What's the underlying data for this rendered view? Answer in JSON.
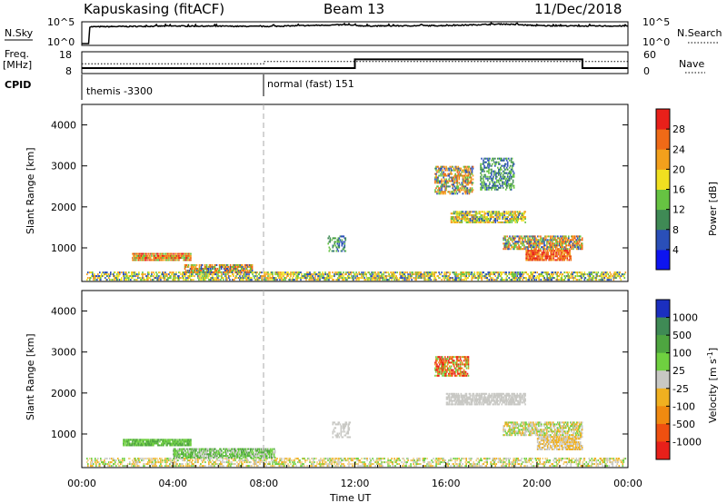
{
  "header": {
    "radar": "Kapuskasing (fitACF)",
    "beam": "Beam 13",
    "date": "11/Dec/2018"
  },
  "chart_data": [
    {
      "type": "line",
      "panel": "noise",
      "left_label": "N.Sky",
      "right_label": "N.Search",
      "left_ticks": [
        "10^5",
        "10^0"
      ],
      "right_ticks": [
        "10^5",
        "10^0"
      ],
      "series": [
        {
          "name": "N.Sky",
          "style": "solid",
          "x": [
            0,
            0.3,
            0.35,
            4,
            8,
            11.5,
            12.5,
            16,
            18.5,
            20,
            22,
            24
          ],
          "y": [
            0,
            0,
            4.2,
            4.4,
            4.3,
            4.7,
            4.4,
            4.5,
            4.9,
            4.5,
            4.4,
            4.4
          ]
        },
        {
          "name": "N.Search",
          "style": "dotted",
          "x": [],
          "y": []
        }
      ]
    },
    {
      "type": "line",
      "panel": "frequency",
      "left_label_1": "Freq.",
      "left_label_2": "[MHz]",
      "right_label": "Nave",
      "left_ticks": [
        "18",
        "8"
      ],
      "right_ticks": [
        "60",
        "0"
      ],
      "ylim": [
        8,
        18
      ],
      "series": [
        {
          "name": "Freq.",
          "style": "solid",
          "x": [
            0,
            8,
            8,
            12,
            12,
            22,
            22,
            24
          ],
          "y": [
            10.5,
            10.5,
            10.5,
            10.5,
            14.5,
            14.5,
            10.5,
            10.5
          ]
        },
        {
          "name": "Nave",
          "style": "dotted",
          "x": [
            0,
            8,
            8,
            24
          ],
          "y": [
            12.5,
            12.5,
            13.5,
            13.5
          ]
        }
      ]
    },
    {
      "type": "table",
      "panel": "cpid",
      "label": "CPID",
      "segments": [
        {
          "start": 0,
          "end": 8,
          "text": "themis -3300"
        },
        {
          "start": 8,
          "end": 24,
          "text": "normal (fast) 151"
        }
      ]
    },
    {
      "type": "heatmap",
      "panel": "power",
      "ylabel": "Slant Range [km]",
      "xlim": [
        0,
        24
      ],
      "ylim": [
        180,
        4500
      ],
      "y_ticks": [
        "1000",
        "2000",
        "3000",
        "4000"
      ],
      "colorbar": {
        "label": "Power [dB]",
        "tick_labels": [
          "4",
          "8",
          "12",
          "16",
          "20",
          "24",
          "28"
        ],
        "colors": [
          "#0d14f0",
          "#2a4fb8",
          "#3f8a55",
          "#66c342",
          "#f0e020",
          "#f3a01c",
          "#ef6a17",
          "#e8201a"
        ]
      },
      "regions": [
        {
          "t0": 0.2,
          "t1": 23.9,
          "r0": 200,
          "r1": 420,
          "c": [
            "#f0e020",
            "#2a4fb8",
            "#66c342",
            "#f3a01c"
          ],
          "d": 0.55
        },
        {
          "t0": 2.2,
          "t1": 4.8,
          "r0": 680,
          "r1": 880,
          "c": [
            "#ef6a17",
            "#f3a01c",
            "#e8201a",
            "#66c342"
          ],
          "d": 0.85
        },
        {
          "t0": 4.5,
          "t1": 7.5,
          "r0": 380,
          "r1": 600,
          "c": [
            "#f3a01c",
            "#ef6a17",
            "#66c342",
            "#2a4fb8"
          ],
          "d": 0.7
        },
        {
          "t0": 10.8,
          "t1": 11.6,
          "r0": 900,
          "r1": 1300,
          "c": [
            "#3f8a55",
            "#2a4fb8",
            "#66c342"
          ],
          "d": 0.4
        },
        {
          "t0": 15.5,
          "t1": 17.2,
          "r0": 2300,
          "r1": 3000,
          "c": [
            "#f3a01c",
            "#ef6a17",
            "#66c342",
            "#2a4fb8"
          ],
          "d": 0.55
        },
        {
          "t0": 16.2,
          "t1": 19.5,
          "r0": 1600,
          "r1": 1900,
          "c": [
            "#f3a01c",
            "#66c342",
            "#2a4fb8",
            "#f0e020"
          ],
          "d": 0.65
        },
        {
          "t0": 17.5,
          "t1": 19.0,
          "r0": 2400,
          "r1": 3200,
          "c": [
            "#66c342",
            "#2a4fb8",
            "#3f8a55"
          ],
          "d": 0.45
        },
        {
          "t0": 18.5,
          "t1": 22.0,
          "r0": 950,
          "r1": 1300,
          "c": [
            "#ef6a17",
            "#66c342",
            "#f3a01c",
            "#2a4fb8"
          ],
          "d": 0.6
        },
        {
          "t0": 19.5,
          "t1": 21.5,
          "r0": 680,
          "r1": 950,
          "c": [
            "#e8201a",
            "#ef6a17",
            "#f3a01c"
          ],
          "d": 0.8
        }
      ]
    },
    {
      "type": "heatmap",
      "panel": "velocity",
      "ylabel": "Slant Range [km]",
      "xlim": [
        0,
        24
      ],
      "ylim": [
        180,
        4500
      ],
      "y_ticks": [
        "1000",
        "2000",
        "3000",
        "4000"
      ],
      "x_ticks": [
        "00:00",
        "04:00",
        "08:00",
        "12:00",
        "16:00",
        "20:00",
        "00:00"
      ],
      "xlabel": "Time UT",
      "colorbar": {
        "label": "Velocity [m s",
        "label_sup": "-1",
        "label_end": "]",
        "tick_labels": [
          "1000",
          "500",
          "100",
          "25",
          "-25",
          "-100",
          "-500",
          "-1000"
        ],
        "colors": [
          "#1b2fbf",
          "#3f8a55",
          "#4ea540",
          "#6fd040",
          "#c8c8c4",
          "#f0b020",
          "#f08a10",
          "#ef5010",
          "#e8201a"
        ]
      },
      "regions": [
        {
          "t0": 0.2,
          "t1": 23.9,
          "r0": 200,
          "r1": 420,
          "c": [
            "#f0d080",
            "#c8c8c4",
            "#6fd040",
            "#f0b020"
          ],
          "d": 0.45
        },
        {
          "t0": 1.8,
          "t1": 4.8,
          "r0": 700,
          "r1": 880,
          "c": [
            "#6fd040",
            "#4ea540"
          ],
          "d": 0.85
        },
        {
          "t0": 4.0,
          "t1": 8.5,
          "r0": 400,
          "r1": 650,
          "c": [
            "#6fd040",
            "#4ea540",
            "#c8c8c4"
          ],
          "d": 0.7
        },
        {
          "t0": 11.0,
          "t1": 11.8,
          "r0": 900,
          "r1": 1300,
          "c": [
            "#c8c8c4"
          ],
          "d": 0.4
        },
        {
          "t0": 15.5,
          "t1": 17.0,
          "r0": 2400,
          "r1": 2900,
          "c": [
            "#ef5010",
            "#f08a10",
            "#e8201a",
            "#6fd040"
          ],
          "d": 0.6
        },
        {
          "t0": 16.0,
          "t1": 19.5,
          "r0": 1700,
          "r1": 2000,
          "c": [
            "#c8c8c4"
          ],
          "d": 0.7
        },
        {
          "t0": 18.5,
          "t1": 22.0,
          "r0": 950,
          "r1": 1300,
          "c": [
            "#c8c8c4",
            "#6fd040",
            "#f0b020"
          ],
          "d": 0.6
        },
        {
          "t0": 20.0,
          "t1": 22.0,
          "r0": 600,
          "r1": 950,
          "c": [
            "#c8c8c4",
            "#f0b020"
          ],
          "d": 0.7
        }
      ]
    }
  ]
}
